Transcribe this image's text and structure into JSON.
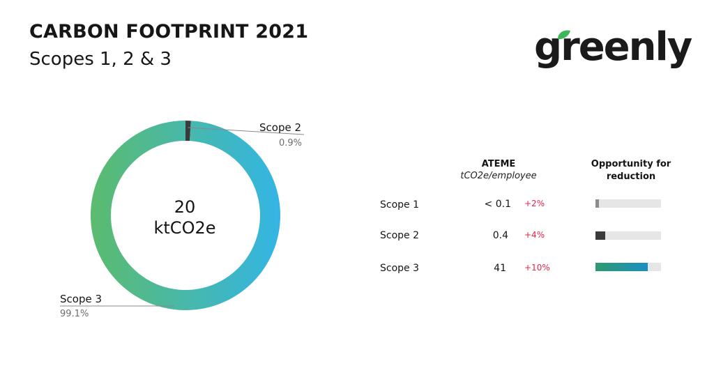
{
  "header": {
    "title": "CARBON FOOTPRINT 2021",
    "subtitle": "Scopes 1, 2 & 3"
  },
  "logo": {
    "text": "greenly",
    "leaf_color": "#3db65a"
  },
  "chart_data": [
    {
      "type": "pie",
      "variant": "donut",
      "center_value": "20",
      "center_unit": "ktCO2e",
      "slices": [
        {
          "label": "Scope 2",
          "value": 0.9,
          "pct_label": "0.9%",
          "color": "#3a3a3a"
        },
        {
          "label": "Scope 3",
          "value": 99.1,
          "pct_label": "99.1%",
          "gradient": [
            "#5cbb6e",
            "#33b5e5"
          ]
        }
      ]
    },
    {
      "type": "table",
      "columns": [
        {
          "title": "ATEME",
          "subtitle": "tCO2e/employee"
        },
        {
          "title": "Opportunity for reduction"
        }
      ],
      "rows": [
        {
          "label": "Scope 1",
          "value": "< 0.1",
          "change": "+2%",
          "opportunity": 0.05,
          "bar_color": "#8c8c8c"
        },
        {
          "label": "Scope 2",
          "value": "0.4",
          "change": "+4%",
          "opportunity": 0.15,
          "bar_color": "#3a3a3a"
        },
        {
          "label": "Scope 3",
          "value": "41",
          "change": "+10%",
          "opportunity": 0.8,
          "bar_gradient": [
            "#2e9a6e",
            "#1890c4"
          ]
        }
      ]
    }
  ]
}
